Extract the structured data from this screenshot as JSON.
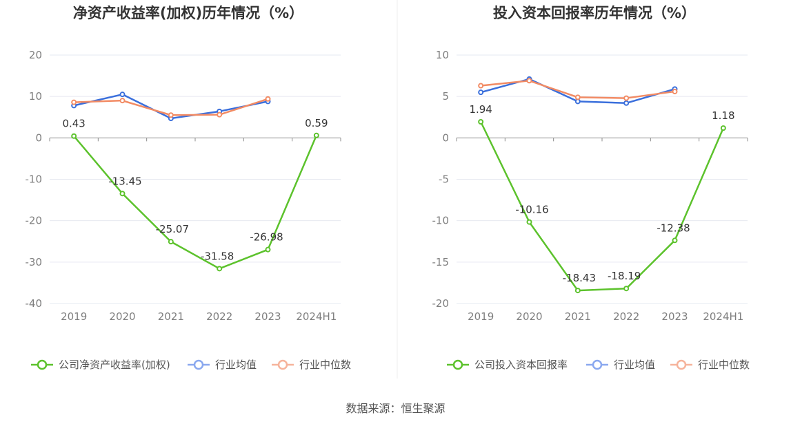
{
  "colors": {
    "company": "#5cc22c",
    "industry_avg": "#3a6fdc",
    "industry_median": "#f28b64",
    "legend_avg": "#8aa8ef",
    "legend_median": "#f6b39b",
    "grid": "#e6e8f0",
    "axis": "#8c8c8c",
    "divider": "#eeeeee"
  },
  "chart_data": [
    {
      "type": "line",
      "title": "净资产收益率(加权)历年情况（%）",
      "categories": [
        "2019",
        "2020",
        "2021",
        "2022",
        "2023",
        "2024H1"
      ],
      "ylim": [
        -40,
        20
      ],
      "yticks": [
        "20",
        "10",
        "0",
        "-10",
        "-20",
        "-30",
        "-40"
      ],
      "grid": true,
      "legend_position": "bottom",
      "series": [
        {
          "name": "公司净资产收益率(加权)",
          "values": [
            0.43,
            -13.45,
            -25.07,
            -31.58,
            -26.98,
            0.59
          ],
          "labels": [
            "0.43",
            "-13.45",
            "-25.07",
            "-31.58",
            "-26.98",
            "0.59"
          ]
        },
        {
          "name": "行业均值",
          "values": [
            7.8,
            10.5,
            4.7,
            6.4,
            8.8,
            null
          ]
        },
        {
          "name": "行业中位数",
          "values": [
            8.6,
            9.0,
            5.5,
            5.6,
            9.4,
            null
          ]
        }
      ]
    },
    {
      "type": "line",
      "title": "投入资本回报率历年情况（%）",
      "categories": [
        "2019",
        "2020",
        "2021",
        "2022",
        "2023",
        "2024H1"
      ],
      "ylim": [
        -20,
        10
      ],
      "yticks": [
        "10",
        "5",
        "0",
        "-5",
        "-10",
        "-15",
        "-20"
      ],
      "grid": true,
      "legend_position": "bottom",
      "series": [
        {
          "name": "公司投入资本回报率",
          "values": [
            1.94,
            -10.16,
            -18.43,
            -18.19,
            -12.38,
            1.18
          ],
          "labels": [
            "1.94",
            "-10.16",
            "-18.43",
            "-18.19",
            "-12.38",
            "1.18"
          ]
        },
        {
          "name": "行业均值",
          "values": [
            5.5,
            7.1,
            4.4,
            4.2,
            5.9,
            null
          ]
        },
        {
          "name": "行业中位数",
          "values": [
            6.3,
            6.9,
            4.9,
            4.8,
            5.6,
            null
          ]
        }
      ]
    }
  ],
  "source": "数据来源：恒生聚源"
}
